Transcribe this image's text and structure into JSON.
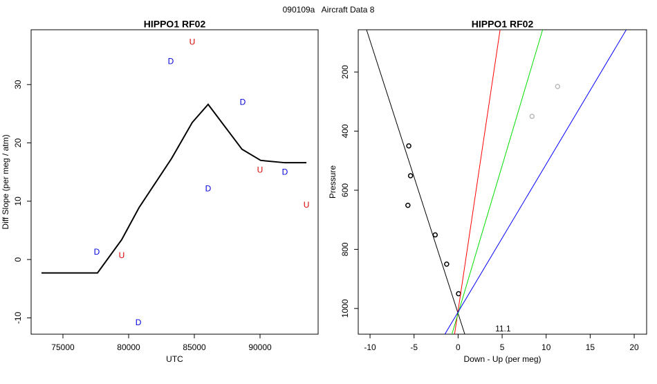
{
  "page_title": "090109a   Aircraft Data 8",
  "chart_data": [
    {
      "type": "line",
      "title": "HIPPO1 RF02",
      "x_label": "UTC",
      "y_label": "Diff Slope (per meg / atm)",
      "xlim": [
        72580,
        94420
      ],
      "ylim": [
        -12.8,
        39.4
      ],
      "xticks": [
        75000,
        80000,
        85000,
        90000
      ],
      "yticks": [
        -10,
        0,
        10,
        20,
        30
      ],
      "series": [
        {
          "mode": "lines",
          "color": "#000000",
          "x": [
            73370,
            77630,
            79470,
            80790,
            83260,
            84840,
            86050,
            88630,
            90050,
            91890,
            93530
          ],
          "values": [
            -2.3,
            -2.3,
            3.4,
            8.9,
            17.3,
            23.5,
            26.6,
            18.9,
            17.0,
            16.6,
            16.6
          ]
        },
        {
          "mode": "text",
          "name": "D",
          "color": "#0000dd",
          "x": [
            77580,
            83210,
            88680,
            86050,
            91890,
            80740
          ],
          "values": [
            1.2,
            33.9,
            26.9,
            12.1,
            14.9,
            -10.9
          ]
        },
        {
          "mode": "text",
          "name": "U",
          "color": "#dd0000",
          "x": [
            84840,
            79470,
            90000,
            93530
          ],
          "values": [
            37.2,
            0.6,
            15.3,
            9.3
          ]
        }
      ]
    },
    {
      "type": "scatter",
      "title": "HIPPO1 RF02",
      "x_label": "Down - Up (per meg)",
      "y_label": "Pressure",
      "xlim": [
        -11.34,
        21.41
      ],
      "ylim": [
        1087,
        57
      ],
      "xticks": [
        -10,
        -5,
        0,
        5,
        10,
        15,
        20
      ],
      "yticks": [
        200,
        400,
        600,
        800,
        1000
      ],
      "series": [
        {
          "mode": "points",
          "color": "#000000",
          "x": [
            -5.6,
            -5.4,
            -5.7,
            -2.6,
            -1.3,
            0.05
          ],
          "values": [
            450,
            551,
            651,
            751,
            850,
            950
          ]
        },
        {
          "mode": "points",
          "color": "#bbbbbb",
          "x": [
            8.4,
            11.3
          ],
          "values": [
            350,
            249
          ]
        },
        {
          "mode": "lines",
          "color": "#000000",
          "x": [
            -10.4,
            0.76
          ],
          "values": [
            57,
            1087
          ]
        },
        {
          "mode": "lines",
          "color": "#ff0000",
          "x": [
            4.77,
            -0.4
          ],
          "values": [
            57,
            1087
          ]
        },
        {
          "mode": "lines",
          "color": "#00dd00",
          "x": [
            9.6,
            -0.7
          ],
          "values": [
            57,
            1087
          ]
        },
        {
          "mode": "lines",
          "color": "#0000ff",
          "x": [
            19.1,
            -1.5
          ],
          "values": [
            57,
            1087
          ]
        }
      ],
      "annotations": [
        {
          "text": "11.1",
          "x": 5.1,
          "y": 1070
        }
      ]
    }
  ]
}
